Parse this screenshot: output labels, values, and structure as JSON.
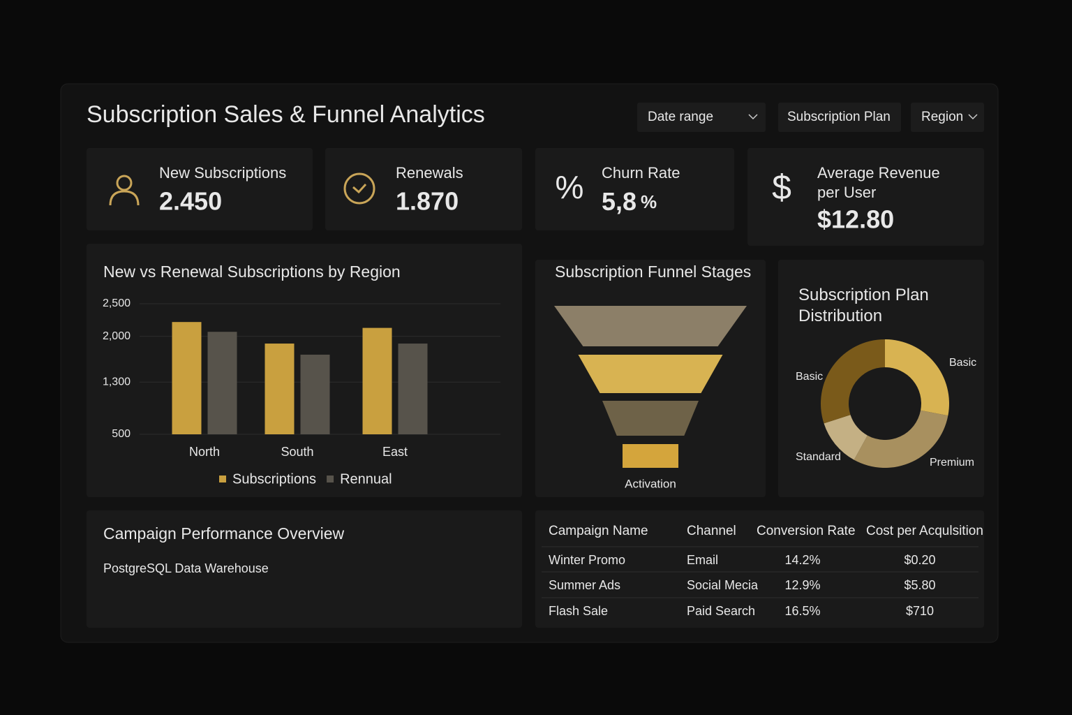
{
  "header": {
    "title": "Subscription Sales & Funnel Analytics",
    "filters": [
      "Date range",
      "Subscription Plan",
      "Region"
    ]
  },
  "kpis": [
    {
      "label": "New Subscriptions",
      "value": "2.450"
    },
    {
      "label": "Renewals",
      "value": "1.870"
    },
    {
      "icon": "%",
      "label": "Churn Rate",
      "value": "5,8",
      "unit": "%"
    },
    {
      "icon": "$",
      "label": "Average Revenue per User",
      "value": "$12.80"
    }
  ],
  "chart_data": [
    {
      "type": "bar",
      "title": "New vs Renewal Subscriptions by Region",
      "categories": [
        "North",
        "South",
        "East"
      ],
      "series": [
        {
          "name": "Subscriptions",
          "color": "#c9a03f",
          "values": [
            2220,
            1890,
            2130
          ]
        },
        {
          "name": "Rennual",
          "color": "#57534b",
          "values": [
            2070,
            1720,
            1890
          ]
        }
      ],
      "ylim": [
        500,
        2500
      ],
      "yticks": [
        {
          "value": 2500,
          "label": "2,500"
        },
        {
          "value": 2000,
          "label": "2,000"
        },
        {
          "value": 1300,
          "label": "1,300"
        },
        500
      ],
      "grid": true,
      "legend": "bottom"
    },
    {
      "type": "funnel",
      "title": "Subscription Funnel Stages",
      "categories": [
        null,
        null,
        null,
        "Activation"
      ],
      "values": [
        100,
        75,
        50,
        29
      ],
      "colors": [
        "#8c7f68",
        "#d8b352",
        "#6e6248",
        "#d4a53c"
      ]
    },
    {
      "type": "donut",
      "title": "Subscription Plan Distribution",
      "categories": [
        "Basic",
        "Premium",
        "Standard",
        "Basic"
      ],
      "values": [
        28,
        30,
        12,
        30
      ],
      "colors": [
        "#d8b352",
        "#a8905f",
        "#c4b084",
        "#7a5a1a"
      ]
    }
  ],
  "campaign": {
    "title": "Campaign Performance Overview",
    "source": "PostgreSQL Data Warehouse"
  },
  "table": {
    "columns": [
      "Campaign Name",
      "Channel",
      "Conversion Rate",
      "Cost per Acqulsition"
    ],
    "rows": [
      [
        "Winter Promo",
        "Email",
        "14.2%",
        "$0.20"
      ],
      [
        "Summer Ads",
        "Social Mecia",
        "12.9%",
        "$5.80"
      ],
      [
        "Flash Sale",
        "Paid Search",
        "16.5%",
        "$710"
      ]
    ]
  }
}
